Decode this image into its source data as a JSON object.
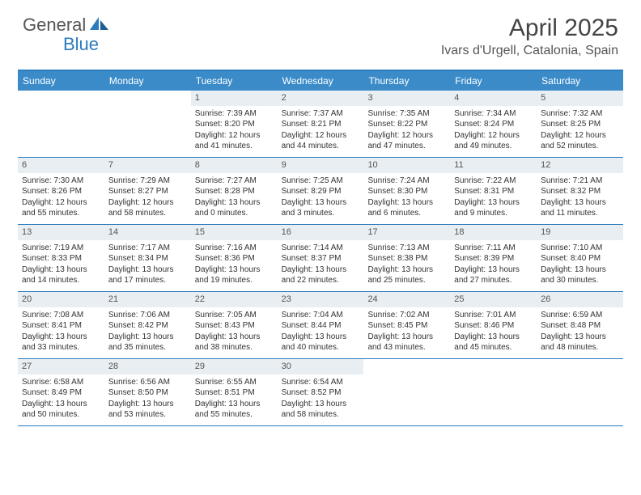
{
  "logo": {
    "text1": "General",
    "text2": "Blue"
  },
  "title": "April 2025",
  "location": "Ivars d'Urgell, Catalonia, Spain",
  "colors": {
    "header_bg": "#3b8bc9",
    "border": "#2b7bbd",
    "daynum_bg": "#e9eef2",
    "text": "#333333",
    "logo_gray": "#555555",
    "logo_blue": "#2b7bbd"
  },
  "weekdays": [
    "Sunday",
    "Monday",
    "Tuesday",
    "Wednesday",
    "Thursday",
    "Friday",
    "Saturday"
  ],
  "weeks": [
    [
      {
        "num": "",
        "sunrise": "",
        "sunset": "",
        "daylight": ""
      },
      {
        "num": "",
        "sunrise": "",
        "sunset": "",
        "daylight": ""
      },
      {
        "num": "1",
        "sunrise": "Sunrise: 7:39 AM",
        "sunset": "Sunset: 8:20 PM",
        "daylight": "Daylight: 12 hours and 41 minutes."
      },
      {
        "num": "2",
        "sunrise": "Sunrise: 7:37 AM",
        "sunset": "Sunset: 8:21 PM",
        "daylight": "Daylight: 12 hours and 44 minutes."
      },
      {
        "num": "3",
        "sunrise": "Sunrise: 7:35 AM",
        "sunset": "Sunset: 8:22 PM",
        "daylight": "Daylight: 12 hours and 47 minutes."
      },
      {
        "num": "4",
        "sunrise": "Sunrise: 7:34 AM",
        "sunset": "Sunset: 8:24 PM",
        "daylight": "Daylight: 12 hours and 49 minutes."
      },
      {
        "num": "5",
        "sunrise": "Sunrise: 7:32 AM",
        "sunset": "Sunset: 8:25 PM",
        "daylight": "Daylight: 12 hours and 52 minutes."
      }
    ],
    [
      {
        "num": "6",
        "sunrise": "Sunrise: 7:30 AM",
        "sunset": "Sunset: 8:26 PM",
        "daylight": "Daylight: 12 hours and 55 minutes."
      },
      {
        "num": "7",
        "sunrise": "Sunrise: 7:29 AM",
        "sunset": "Sunset: 8:27 PM",
        "daylight": "Daylight: 12 hours and 58 minutes."
      },
      {
        "num": "8",
        "sunrise": "Sunrise: 7:27 AM",
        "sunset": "Sunset: 8:28 PM",
        "daylight": "Daylight: 13 hours and 0 minutes."
      },
      {
        "num": "9",
        "sunrise": "Sunrise: 7:25 AM",
        "sunset": "Sunset: 8:29 PM",
        "daylight": "Daylight: 13 hours and 3 minutes."
      },
      {
        "num": "10",
        "sunrise": "Sunrise: 7:24 AM",
        "sunset": "Sunset: 8:30 PM",
        "daylight": "Daylight: 13 hours and 6 minutes."
      },
      {
        "num": "11",
        "sunrise": "Sunrise: 7:22 AM",
        "sunset": "Sunset: 8:31 PM",
        "daylight": "Daylight: 13 hours and 9 minutes."
      },
      {
        "num": "12",
        "sunrise": "Sunrise: 7:21 AM",
        "sunset": "Sunset: 8:32 PM",
        "daylight": "Daylight: 13 hours and 11 minutes."
      }
    ],
    [
      {
        "num": "13",
        "sunrise": "Sunrise: 7:19 AM",
        "sunset": "Sunset: 8:33 PM",
        "daylight": "Daylight: 13 hours and 14 minutes."
      },
      {
        "num": "14",
        "sunrise": "Sunrise: 7:17 AM",
        "sunset": "Sunset: 8:34 PM",
        "daylight": "Daylight: 13 hours and 17 minutes."
      },
      {
        "num": "15",
        "sunrise": "Sunrise: 7:16 AM",
        "sunset": "Sunset: 8:36 PM",
        "daylight": "Daylight: 13 hours and 19 minutes."
      },
      {
        "num": "16",
        "sunrise": "Sunrise: 7:14 AM",
        "sunset": "Sunset: 8:37 PM",
        "daylight": "Daylight: 13 hours and 22 minutes."
      },
      {
        "num": "17",
        "sunrise": "Sunrise: 7:13 AM",
        "sunset": "Sunset: 8:38 PM",
        "daylight": "Daylight: 13 hours and 25 minutes."
      },
      {
        "num": "18",
        "sunrise": "Sunrise: 7:11 AM",
        "sunset": "Sunset: 8:39 PM",
        "daylight": "Daylight: 13 hours and 27 minutes."
      },
      {
        "num": "19",
        "sunrise": "Sunrise: 7:10 AM",
        "sunset": "Sunset: 8:40 PM",
        "daylight": "Daylight: 13 hours and 30 minutes."
      }
    ],
    [
      {
        "num": "20",
        "sunrise": "Sunrise: 7:08 AM",
        "sunset": "Sunset: 8:41 PM",
        "daylight": "Daylight: 13 hours and 33 minutes."
      },
      {
        "num": "21",
        "sunrise": "Sunrise: 7:06 AM",
        "sunset": "Sunset: 8:42 PM",
        "daylight": "Daylight: 13 hours and 35 minutes."
      },
      {
        "num": "22",
        "sunrise": "Sunrise: 7:05 AM",
        "sunset": "Sunset: 8:43 PM",
        "daylight": "Daylight: 13 hours and 38 minutes."
      },
      {
        "num": "23",
        "sunrise": "Sunrise: 7:04 AM",
        "sunset": "Sunset: 8:44 PM",
        "daylight": "Daylight: 13 hours and 40 minutes."
      },
      {
        "num": "24",
        "sunrise": "Sunrise: 7:02 AM",
        "sunset": "Sunset: 8:45 PM",
        "daylight": "Daylight: 13 hours and 43 minutes."
      },
      {
        "num": "25",
        "sunrise": "Sunrise: 7:01 AM",
        "sunset": "Sunset: 8:46 PM",
        "daylight": "Daylight: 13 hours and 45 minutes."
      },
      {
        "num": "26",
        "sunrise": "Sunrise: 6:59 AM",
        "sunset": "Sunset: 8:48 PM",
        "daylight": "Daylight: 13 hours and 48 minutes."
      }
    ],
    [
      {
        "num": "27",
        "sunrise": "Sunrise: 6:58 AM",
        "sunset": "Sunset: 8:49 PM",
        "daylight": "Daylight: 13 hours and 50 minutes."
      },
      {
        "num": "28",
        "sunrise": "Sunrise: 6:56 AM",
        "sunset": "Sunset: 8:50 PM",
        "daylight": "Daylight: 13 hours and 53 minutes."
      },
      {
        "num": "29",
        "sunrise": "Sunrise: 6:55 AM",
        "sunset": "Sunset: 8:51 PM",
        "daylight": "Daylight: 13 hours and 55 minutes."
      },
      {
        "num": "30",
        "sunrise": "Sunrise: 6:54 AM",
        "sunset": "Sunset: 8:52 PM",
        "daylight": "Daylight: 13 hours and 58 minutes."
      },
      {
        "num": "",
        "sunrise": "",
        "sunset": "",
        "daylight": ""
      },
      {
        "num": "",
        "sunrise": "",
        "sunset": "",
        "daylight": ""
      },
      {
        "num": "",
        "sunrise": "",
        "sunset": "",
        "daylight": ""
      }
    ]
  ]
}
